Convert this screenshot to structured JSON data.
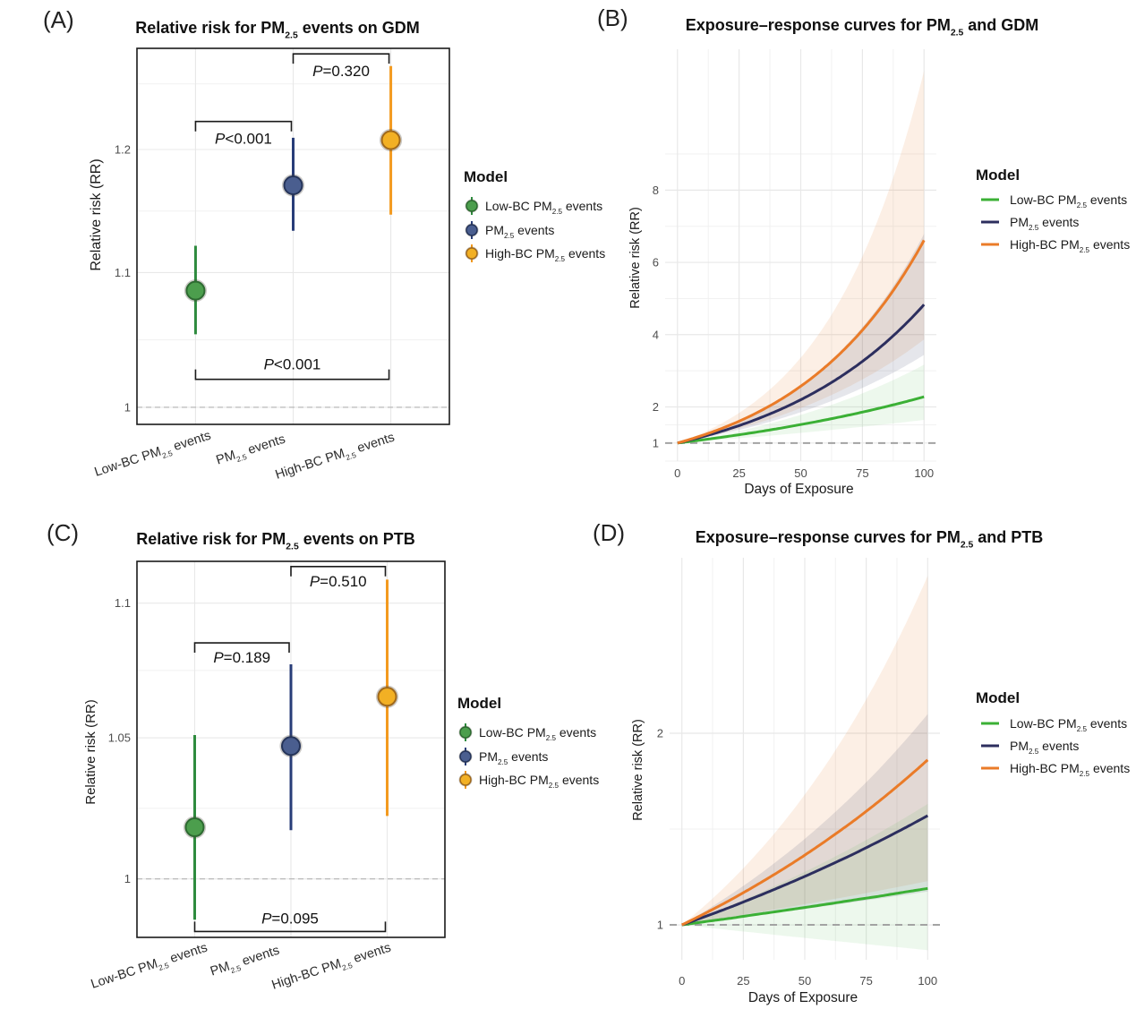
{
  "figure": {
    "panel_count": 4
  },
  "chart_data": [
    {
      "panel_label": "(A)",
      "type": "scatter",
      "subtype": "pointrange",
      "title": "Relative risk for PM2.5 events on GDM",
      "xlabel": "",
      "ylabel": "Relative risk (RR)",
      "y_scale": "log",
      "ylim": [
        0.988,
        1.289
      ],
      "yticks": [
        1,
        1.1,
        1.2
      ],
      "ytick_labels": [
        "1",
        "1.1",
        "1.2"
      ],
      "reference_line": 1,
      "grid": true,
      "categories": [
        "Low-BC PM2.5 events",
        "PM2.5 events",
        "High-BC PM2.5 events"
      ],
      "series": [
        {
          "name": "Low-BC PM2.5 events",
          "estimate": 1.086,
          "lower": 1.053,
          "upper": 1.121,
          "color": "#2e8b3e",
          "fill": "#4c9e4d",
          "stroke": "#2d6a31"
        },
        {
          "name": "PM2.5 events",
          "estimate": 1.17,
          "lower": 1.133,
          "upper": 1.21,
          "color": "#283d78",
          "fill": "#4a5e8f",
          "stroke": "#253459"
        },
        {
          "name": "High-BC PM2.5 events",
          "estimate": 1.208,
          "lower": 1.146,
          "upper": 1.273,
          "color": "#f39a1f",
          "fill": "#f2b024",
          "stroke": "#a0691c"
        }
      ],
      "comparisons": [
        {
          "from": 0,
          "to": 1,
          "y": 1.224,
          "orientation": "down",
          "label": "P<0.001"
        },
        {
          "from": 1,
          "to": 2,
          "y": 1.284,
          "orientation": "down",
          "label": "P=0.320"
        },
        {
          "from": 0,
          "to": 2,
          "y": 1.02,
          "orientation": "up",
          "label": "P<0.001"
        }
      ],
      "legend": {
        "title": "Model",
        "position": "right"
      }
    },
    {
      "panel_label": "(B)",
      "type": "line",
      "title": "Exposure–response curves for PM2.5 and GDM",
      "xlabel": "Days of Exposure",
      "ylabel": "Relative risk (RR)",
      "xlim": [
        -5,
        105
      ],
      "ylim": [
        0.5,
        11.9
      ],
      "xticks": [
        0,
        25,
        50,
        75,
        100
      ],
      "xtick_labels": [
        "0",
        "25",
        "50",
        "75",
        "100"
      ],
      "yticks": [
        1,
        2,
        4,
        6,
        8
      ],
      "ytick_labels": [
        "1",
        "2",
        "4",
        "6",
        "8"
      ],
      "reference_line": 1,
      "grid": true,
      "x": [
        0,
        10,
        20,
        30,
        40,
        50,
        60,
        70,
        80,
        90,
        100
      ],
      "series": [
        {
          "name": "Low-BC PM2.5 events",
          "color": "#3bb035",
          "values": [
            1,
            1.086,
            1.179,
            1.28,
            1.39,
            1.51,
            1.64,
            1.78,
            1.933,
            2.099,
            2.28
          ],
          "lower": [
            1,
            1.051,
            1.104,
            1.16,
            1.219,
            1.281,
            1.346,
            1.414,
            1.486,
            1.561,
            1.64
          ],
          "upper": [
            1,
            1.122,
            1.259,
            1.413,
            1.586,
            1.78,
            1.997,
            2.241,
            2.515,
            2.823,
            3.168
          ]
        },
        {
          "name": "PM2.5 events",
          "color": "#2c2e5e",
          "values": [
            1,
            1.171,
            1.37,
            1.604,
            1.878,
            2.198,
            2.573,
            3.012,
            3.525,
            4.127,
            4.831
          ],
          "lower": [
            1,
            1.131,
            1.28,
            1.448,
            1.639,
            1.854,
            2.098,
            2.374,
            2.686,
            3.039,
            3.438
          ],
          "upper": [
            1,
            1.211,
            1.467,
            1.776,
            2.151,
            2.605,
            3.155,
            3.821,
            4.627,
            5.604,
            6.787
          ]
        },
        {
          "name": "High-BC PM2.5 events",
          "color": "#ea7b28",
          "values": [
            1,
            1.208,
            1.459,
            1.762,
            2.129,
            2.572,
            3.106,
            3.752,
            4.532,
            5.474,
            6.612
          ],
          "lower": [
            1,
            1.145,
            1.311,
            1.501,
            1.718,
            1.967,
            2.252,
            2.578,
            2.952,
            3.379,
            3.869
          ],
          "upper": [
            1,
            1.274,
            1.624,
            2.07,
            2.638,
            3.362,
            4.284,
            5.46,
            6.959,
            8.869,
            11.302
          ]
        }
      ],
      "legend": {
        "title": "Model",
        "position": "right"
      }
    },
    {
      "panel_label": "(C)",
      "type": "scatter",
      "subtype": "pointrange",
      "title": "Relative risk for PM2.5 events on PTB",
      "xlabel": "",
      "ylabel": "Relative risk (RR)",
      "y_scale": "log",
      "ylim": [
        0.98,
        1.116
      ],
      "yticks": [
        1,
        1.05,
        1.1
      ],
      "ytick_labels": [
        "1",
        "1.05",
        "1.1"
      ],
      "reference_line": 1,
      "grid": true,
      "categories": [
        "Low-BC PM2.5 events",
        "PM2.5 events",
        "High-BC PM2.5 events"
      ],
      "series": [
        {
          "name": "Low-BC PM2.5 events",
          "estimate": 1.018,
          "lower": 0.986,
          "upper": 1.051,
          "color": "#2e8b3e",
          "fill": "#4c9e4d",
          "stroke": "#2d6a31"
        },
        {
          "name": "PM2.5 events",
          "estimate": 1.047,
          "lower": 1.017,
          "upper": 1.077,
          "color": "#283d78",
          "fill": "#4a5e8f",
          "stroke": "#253459"
        },
        {
          "name": "High-BC PM2.5 events",
          "estimate": 1.065,
          "lower": 1.022,
          "upper": 1.109,
          "color": "#f39a1f",
          "fill": "#f2b024",
          "stroke": "#a0691c"
        }
      ],
      "comparisons": [
        {
          "from": 0,
          "to": 1,
          "y": 1.085,
          "orientation": "down",
          "label": "P=0.189"
        },
        {
          "from": 1,
          "to": 2,
          "y": 1.114,
          "orientation": "down",
          "label": "P=0.510"
        },
        {
          "from": 0,
          "to": 2,
          "y": 0.982,
          "orientation": "up",
          "label": "P=0.095"
        }
      ],
      "legend": {
        "title": "Model",
        "position": "right"
      }
    },
    {
      "panel_label": "(D)",
      "type": "line",
      "title": "Exposure–response curves for PM2.5 and PTB",
      "xlabel": "Days of Exposure",
      "ylabel": "Relative risk (RR)",
      "xlim": [
        -5,
        105
      ],
      "ylim": [
        0.818,
        2.916
      ],
      "xticks": [
        0,
        25,
        50,
        75,
        100
      ],
      "xtick_labels": [
        "0",
        "25",
        "50",
        "75",
        "100"
      ],
      "yticks": [
        1,
        2
      ],
      "ytick_labels": [
        "1",
        "2"
      ],
      "reference_line": 1,
      "grid": true,
      "x": [
        0,
        10,
        20,
        30,
        40,
        50,
        60,
        70,
        80,
        90,
        100
      ],
      "series": [
        {
          "name": "Low-BC PM2.5 events",
          "color": "#3bb035",
          "values": [
            1,
            1.018,
            1.035,
            1.054,
            1.072,
            1.091,
            1.11,
            1.13,
            1.149,
            1.17,
            1.19
          ],
          "lower": [
            1,
            0.986,
            0.972,
            0.959,
            0.945,
            0.932,
            0.919,
            0.906,
            0.893,
            0.881,
            0.868
          ],
          "upper": [
            1,
            1.05,
            1.103,
            1.158,
            1.216,
            1.277,
            1.341,
            1.408,
            1.479,
            1.553,
            1.631
          ]
        },
        {
          "name": "PM2.5 events",
          "color": "#2c2e5e",
          "values": [
            1,
            1.046,
            1.094,
            1.145,
            1.198,
            1.253,
            1.311,
            1.371,
            1.435,
            1.501,
            1.57
          ],
          "lower": [
            1,
            1.016,
            1.033,
            1.049,
            1.066,
            1.083,
            1.101,
            1.119,
            1.137,
            1.155,
            1.174
          ],
          "upper": [
            1,
            1.077,
            1.16,
            1.249,
            1.346,
            1.449,
            1.561,
            1.681,
            1.81,
            1.95,
            2.1
          ]
        },
        {
          "name": "High-BC PM2.5 events",
          "color": "#ea7b28",
          "values": [
            1,
            1.064,
            1.132,
            1.205,
            1.282,
            1.364,
            1.452,
            1.544,
            1.643,
            1.749,
            1.861
          ],
          "lower": [
            1,
            1.021,
            1.042,
            1.063,
            1.085,
            1.108,
            1.131,
            1.154,
            1.178,
            1.203,
            1.228
          ],
          "upper": [
            1,
            1.109,
            1.23,
            1.365,
            1.514,
            1.68,
            1.863,
            2.067,
            2.292,
            2.543,
            2.821
          ]
        }
      ],
      "legend": {
        "title": "Model",
        "position": "right"
      }
    }
  ]
}
